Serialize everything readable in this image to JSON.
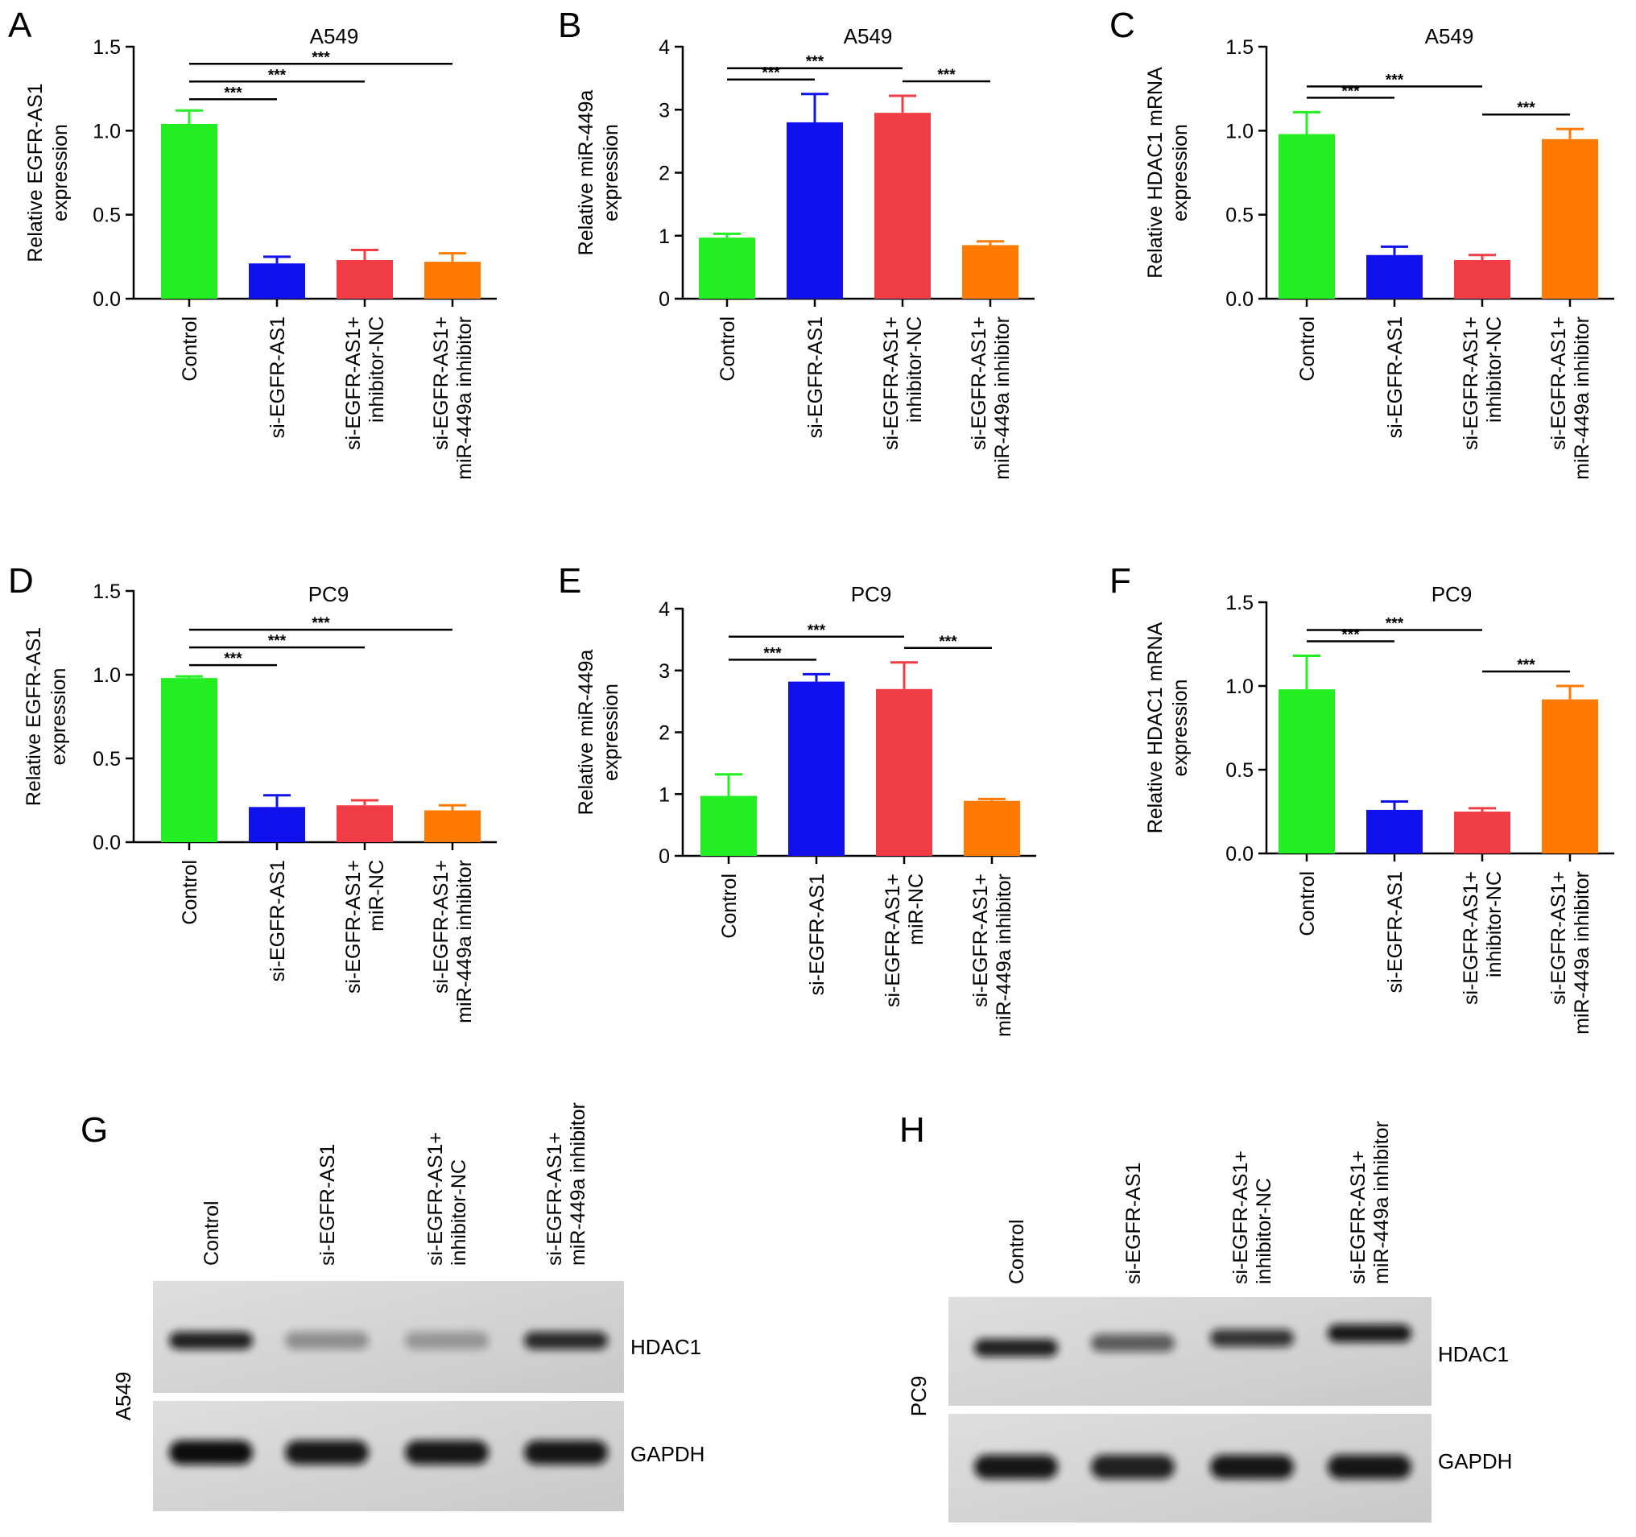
{
  "chart_data": [
    {
      "type": "bar",
      "letter": "A",
      "title": "A549",
      "ylabel": [
        "Relative EGFR-AS1",
        "expression"
      ],
      "ylim": [
        0,
        1.5
      ],
      "yticks": [
        "0.0",
        "0.5",
        "1.0",
        "1.5"
      ],
      "categories": [
        [
          "Control"
        ],
        [
          "si-EGFR-AS1"
        ],
        [
          "si-EGFR-AS1+",
          "inhibitor-NC"
        ],
        [
          "si-EGFR-AS1+",
          "miR-449a inhibitor"
        ]
      ],
      "values": [
        1.04,
        0.21,
        0.23,
        0.22
      ],
      "errors": [
        0.08,
        0.04,
        0.06,
        0.05
      ],
      "colors": [
        "#22ee22",
        "#1111ee",
        "#f03c44",
        "#ff7a00"
      ],
      "significance": [
        {
          "from": 0,
          "to": 1,
          "label": "***",
          "level": 1
        },
        {
          "from": 0,
          "to": 2,
          "label": "***",
          "level": 2
        },
        {
          "from": 0,
          "to": 3,
          "label": "***",
          "level": 3
        }
      ]
    },
    {
      "type": "bar",
      "letter": "B",
      "title": "A549",
      "ylabel": [
        "Relative miR-449a",
        "expression"
      ],
      "ylim": [
        0,
        4
      ],
      "yticks": [
        "0",
        "1",
        "2",
        "3",
        "4"
      ],
      "categories": [
        [
          "Control"
        ],
        [
          "si-EGFR-AS1"
        ],
        [
          "si-EGFR-AS1+",
          "inhibitor-NC"
        ],
        [
          "si-EGFR-AS1+",
          "miR-449a inhibitor"
        ]
      ],
      "values": [
        0.97,
        2.8,
        2.95,
        0.85
      ],
      "errors": [
        0.06,
        0.45,
        0.27,
        0.06
      ],
      "colors": [
        "#22ee22",
        "#1111ee",
        "#f03c44",
        "#ff7a00"
      ],
      "significance": [
        {
          "from": 0,
          "to": 1,
          "label": "***",
          "level": 1
        },
        {
          "from": 0,
          "to": 2,
          "label": "***",
          "level": 2
        },
        {
          "from": 2,
          "to": 3,
          "label": "***",
          "level": 1
        }
      ]
    },
    {
      "type": "bar",
      "letter": "C",
      "title": "A549",
      "ylabel": [
        "Relative HDAC1 mRNA",
        "expression"
      ],
      "ylim": [
        0,
        1.5
      ],
      "yticks": [
        "0.0",
        "0.5",
        "1.0",
        "1.5"
      ],
      "categories": [
        [
          "Control"
        ],
        [
          "si-EGFR-AS1"
        ],
        [
          "si-EGFR-AS1+",
          "inhibitor-NC"
        ],
        [
          "si-EGFR-AS1+",
          "miR-449a inhibitor"
        ]
      ],
      "values": [
        0.98,
        0.26,
        0.23,
        0.95
      ],
      "errors": [
        0.13,
        0.05,
        0.03,
        0.06
      ],
      "colors": [
        "#22ee22",
        "#1111ee",
        "#f03c44",
        "#ff7a00"
      ],
      "significance": [
        {
          "from": 0,
          "to": 1,
          "label": "***",
          "level": 1
        },
        {
          "from": 0,
          "to": 2,
          "label": "***",
          "level": 2
        },
        {
          "from": 2,
          "to": 3,
          "label": "***",
          "level": 1
        }
      ]
    },
    {
      "type": "bar",
      "letter": "D",
      "title": "PC9",
      "ylabel": [
        "Relative EGFR-AS1",
        "expression"
      ],
      "ylim": [
        0,
        1.5
      ],
      "yticks": [
        "0.0",
        "0.5",
        "1.0",
        "1.5"
      ],
      "categories": [
        [
          "Control"
        ],
        [
          "si-EGFR-AS1"
        ],
        [
          "si-EGFR-AS1+",
          "miR-NC"
        ],
        [
          "si-EGFR-AS1+",
          "miR-449a inhibitor"
        ]
      ],
      "values": [
        0.98,
        0.21,
        0.22,
        0.19
      ],
      "errors": [
        0.01,
        0.07,
        0.03,
        0.03
      ],
      "colors": [
        "#22ee22",
        "#1111ee",
        "#f03c44",
        "#ff7a00"
      ],
      "significance": [
        {
          "from": 0,
          "to": 1,
          "label": "***",
          "level": 1
        },
        {
          "from": 0,
          "to": 2,
          "label": "***",
          "level": 2
        },
        {
          "from": 0,
          "to": 3,
          "label": "***",
          "level": 3
        }
      ]
    },
    {
      "type": "bar",
      "letter": "E",
      "title": "PC9",
      "ylabel": [
        "Relative miR-449a",
        "expression"
      ],
      "ylim": [
        0,
        4
      ],
      "yticks": [
        "0",
        "1",
        "2",
        "3",
        "4"
      ],
      "categories": [
        [
          "Control"
        ],
        [
          "si-EGFR-AS1"
        ],
        [
          "si-EGFR-AS1+",
          "miR-NC"
        ],
        [
          "si-EGFR-AS1+",
          "miR-449a inhibitor"
        ]
      ],
      "values": [
        0.97,
        2.82,
        2.7,
        0.89
      ],
      "errors": [
        0.35,
        0.12,
        0.43,
        0.03
      ],
      "colors": [
        "#22ee22",
        "#1111ee",
        "#f03c44",
        "#ff7a00"
      ],
      "significance": [
        {
          "from": 0,
          "to": 1,
          "label": "***",
          "level": 1
        },
        {
          "from": 0,
          "to": 2,
          "label": "***",
          "level": 2
        },
        {
          "from": 2,
          "to": 3,
          "label": "***",
          "level": 1
        }
      ]
    },
    {
      "type": "bar",
      "letter": "F",
      "title": "PC9",
      "ylabel": [
        "Relative HDAC1 mRNA",
        "expression"
      ],
      "ylim": [
        0,
        1.5
      ],
      "yticks": [
        "0.0",
        "0.5",
        "1.0",
        "1.5"
      ],
      "categories": [
        [
          "Control"
        ],
        [
          "si-EGFR-AS1"
        ],
        [
          "si-EGFR-AS1+",
          "inhibitor-NC"
        ],
        [
          "si-EGFR-AS1+",
          "miR-449a inhibitor"
        ]
      ],
      "values": [
        0.98,
        0.26,
        0.25,
        0.92
      ],
      "errors": [
        0.2,
        0.05,
        0.02,
        0.08
      ],
      "colors": [
        "#22ee22",
        "#1111ee",
        "#f03c44",
        "#ff7a00"
      ],
      "significance": [
        {
          "from": 0,
          "to": 1,
          "label": "***",
          "level": 1
        },
        {
          "from": 0,
          "to": 2,
          "label": "***",
          "level": 2
        },
        {
          "from": 2,
          "to": 3,
          "label": "***",
          "level": 1
        }
      ]
    }
  ],
  "blots": [
    {
      "letter": "G",
      "cell_line": "A549",
      "lanes": [
        [
          "Control"
        ],
        [
          "si-EGFR-AS1"
        ],
        [
          "si-EGFR-AS1+",
          "inhibitor-NC"
        ],
        [
          "si-EGFR-AS1+",
          "miR-449a inhibitor"
        ]
      ],
      "proteins": [
        "HDAC1",
        "GAPDH"
      ],
      "band_intensity": {
        "HDAC1": [
          0.9,
          0.35,
          0.3,
          0.85
        ],
        "GAPDH": [
          1.0,
          0.95,
          0.95,
          0.95
        ]
      }
    },
    {
      "letter": "H",
      "cell_line": "PC9",
      "lanes": [
        [
          "Control"
        ],
        [
          "si-EGFR-AS1"
        ],
        [
          "si-EGFR-AS1+",
          "inhibitor-NC"
        ],
        [
          "si-EGFR-AS1+",
          "miR-449a inhibitor"
        ]
      ],
      "proteins": [
        "HDAC1",
        "GAPDH"
      ],
      "band_intensity": {
        "HDAC1": [
          0.9,
          0.6,
          0.8,
          0.95
        ],
        "GAPDH": [
          0.95,
          0.9,
          0.95,
          0.95
        ]
      }
    }
  ]
}
